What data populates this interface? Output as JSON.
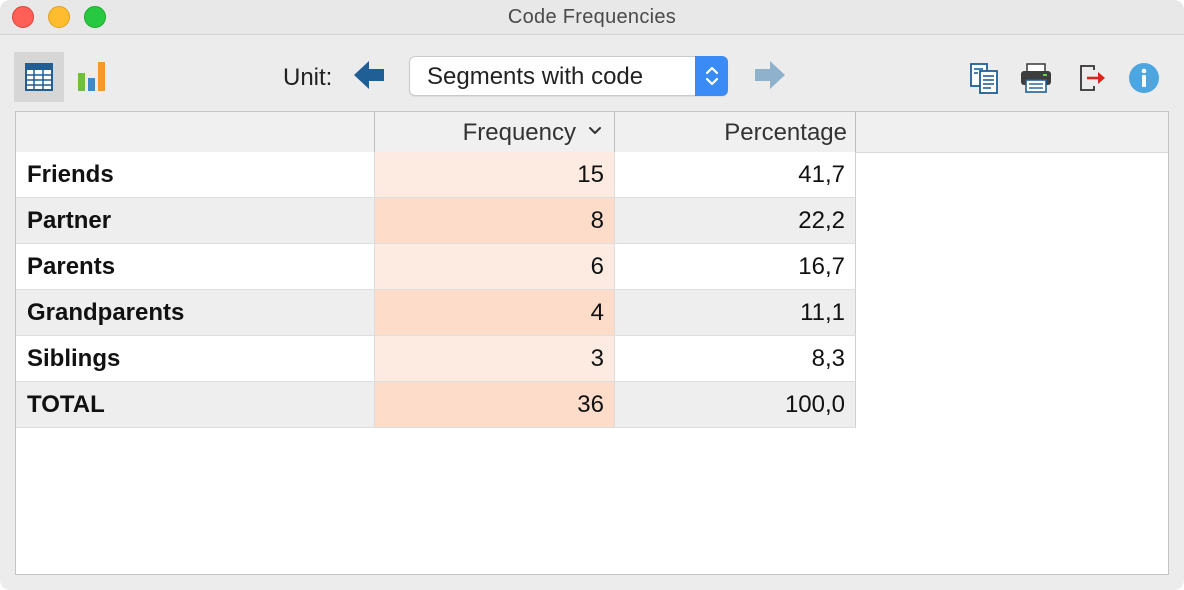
{
  "window": {
    "title": "Code Frequencies"
  },
  "toolbar": {
    "unit_label": "Unit:",
    "unit_select": {
      "value": "Segments with code"
    },
    "icons": {
      "table_view": "table-icon",
      "chart_view": "bar-chart-icon",
      "prev": "arrow-left-icon",
      "next": "arrow-right-icon",
      "copy": "copy-icon",
      "print": "printer-icon",
      "export": "export-icon",
      "info": "info-icon"
    }
  },
  "table": {
    "columns": [
      "",
      "Frequency",
      "Percentage"
    ],
    "rows": [
      {
        "name": "Friends",
        "frequency": "15",
        "percentage": "41,7"
      },
      {
        "name": "Partner",
        "frequency": "8",
        "percentage": "22,2"
      },
      {
        "name": "Parents",
        "frequency": "6",
        "percentage": "16,7"
      },
      {
        "name": "Grandparents",
        "frequency": "4",
        "percentage": "11,1"
      },
      {
        "name": "Siblings",
        "frequency": "3",
        "percentage": "8,3"
      },
      {
        "name": "TOTAL",
        "frequency": "36",
        "percentage": "100,0"
      }
    ]
  },
  "colors": {
    "accent": "#3a8bf5",
    "arrow_active": "#1f5f96",
    "arrow_inactive": "#8fb2cc",
    "freq_light": "#fdebe1",
    "freq_dark": "#fddcca",
    "row_alt": "#eeeeee"
  }
}
